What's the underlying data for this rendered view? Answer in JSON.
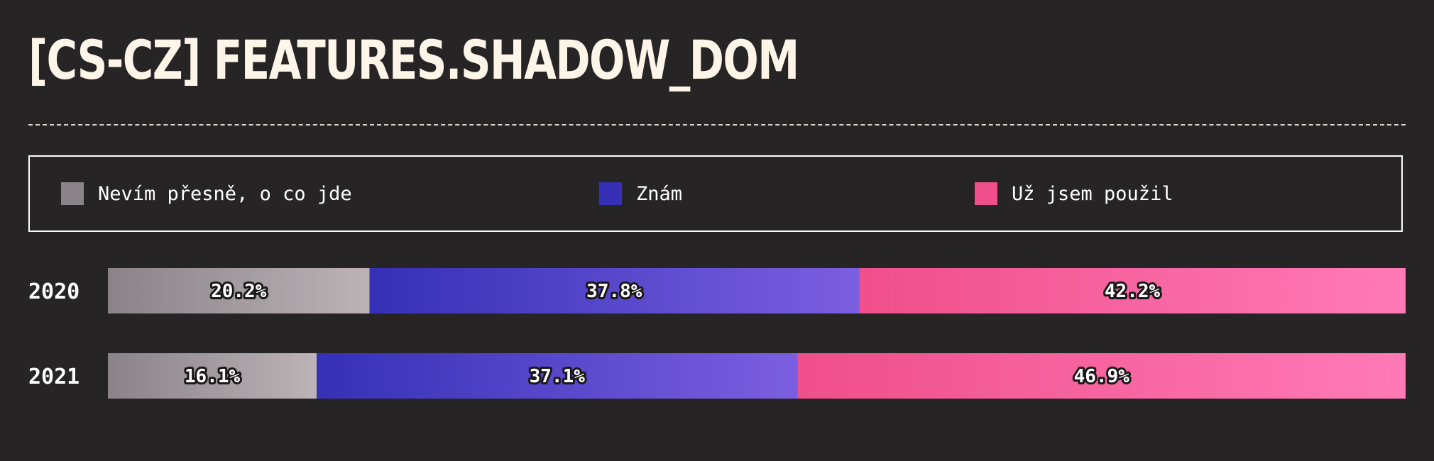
{
  "title": "[CS-CZ] FEATURES.SHADOW_DOM",
  "colors": {
    "background": "#272426",
    "unknown_from": "#8a8387",
    "unknown_to": "#bbb3b6",
    "known_from": "#3530b6",
    "known_to": "#7b5fe0",
    "used_from": "#ef4f8a",
    "used_to": "#ff7ab6"
  },
  "legend": [
    {
      "label": "Nevím přesně, o co jde",
      "color": "#8a8387"
    },
    {
      "label": "Znám",
      "color": "#3530b6"
    },
    {
      "label": "Už jsem použil",
      "color": "#ef4f8a"
    }
  ],
  "chart_data": {
    "type": "bar",
    "orientation": "horizontal",
    "stacked": true,
    "normalized": true,
    "categories": [
      "2020",
      "2021"
    ],
    "series": [
      {
        "name": "Nevím přesně, o co jde",
        "values": [
          20.2,
          16.1
        ],
        "labels": [
          "20.2%",
          "16.1%"
        ]
      },
      {
        "name": "Znám",
        "values": [
          37.8,
          37.1
        ],
        "labels": [
          "37.8%",
          "37.1%"
        ]
      },
      {
        "name": "Už jsem použil",
        "values": [
          42.2,
          46.9
        ],
        "labels": [
          "42.2%",
          "46.9%"
        ]
      }
    ],
    "xlim": [
      0,
      100
    ],
    "legend_position": "top",
    "grid": false
  }
}
